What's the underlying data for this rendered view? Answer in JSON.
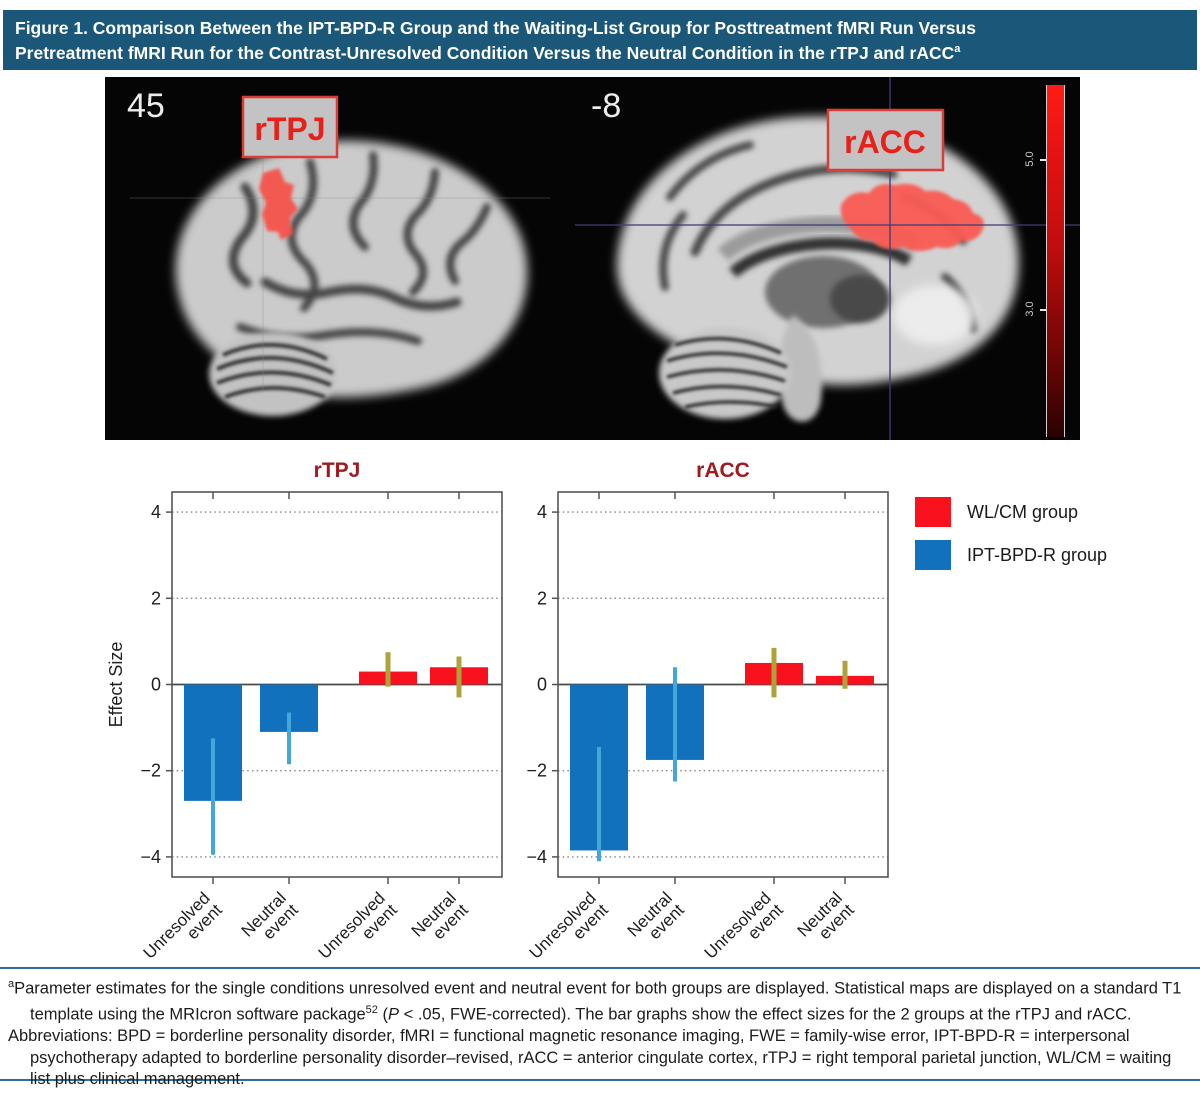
{
  "header": {
    "title_line1": "Figure 1. Comparison Between the IPT-BPD-R Group and the Waiting-List Group for Posttreatment fMRI Run Versus",
    "title_line2": "Pretreatment fMRI Run for the Contrast-Unresolved Condition Versus the Neutral Condition in the rTPJ and rACC",
    "title_superscript": "a"
  },
  "brain_panel": {
    "left_slice": {
      "coordinate_label": "45",
      "region_label": "rTPJ"
    },
    "right_slice": {
      "coordinate_label": "-8",
      "region_label": "rACC"
    },
    "colorbar": {
      "tick_top": "5.0",
      "tick_bottom": "3.0"
    },
    "region_label_color": "#E8201A",
    "label_box_bg": "#C3C3C3",
    "crosshair_color": "#3E3E78"
  },
  "legend": {
    "items": [
      {
        "label": "WL/CM group",
        "color": "#FA111E"
      },
      {
        "label": "IPT-BPD-R group",
        "color": "#1171BD"
      }
    ]
  },
  "chart_data": [
    {
      "type": "bar",
      "title": "rTPJ",
      "title_color": "#9E1C20",
      "ylabel": "Effect Size",
      "ylim": [
        -4.5,
        4.5
      ],
      "yticks": [
        4,
        2,
        0,
        -2,
        -4
      ],
      "grid": "dotted horizontal lines at ±2 and ±4, solid line at 0, legend outside top-right",
      "categories": [
        "Unresolved\nevent",
        "Neutral\nevent",
        "Unresolved\nevent",
        "Neutral\nevent"
      ],
      "groups": [
        "IPT-BPD-R group",
        "IPT-BPD-R group",
        "WL/CM group",
        "WL/CM group"
      ],
      "values": [
        -2.7,
        -1.1,
        0.3,
        0.4
      ],
      "error_low": [
        -3.95,
        -1.85,
        -0.05,
        -0.3
      ],
      "error_high": [
        -1.25,
        -0.65,
        0.75,
        0.65
      ],
      "bar_colors": [
        "#1171BD",
        "#1171BD",
        "#FA111E",
        "#FA111E"
      ],
      "error_bar_colors": [
        "#45A7D9",
        "#45A7D9",
        "#ADA23C",
        "#ADA23C"
      ]
    },
    {
      "type": "bar",
      "title": "rACC",
      "title_color": "#9E1C20",
      "ylabel": "",
      "ylim": [
        -4.5,
        4.5
      ],
      "yticks": [
        4,
        2,
        0,
        -2,
        -4
      ],
      "grid": "dotted horizontal lines at ±2 and ±4, solid line at 0",
      "categories": [
        "Unresolved\nevent",
        "Neutral\nevent",
        "Unresolved\nevent",
        "Neutral\nevent"
      ],
      "groups": [
        "IPT-BPD-R group",
        "IPT-BPD-R group",
        "WL/CM group",
        "WL/CM group"
      ],
      "values": [
        -3.85,
        -1.75,
        0.5,
        0.2
      ],
      "error_low": [
        -4.1,
        -2.25,
        -0.3,
        -0.1
      ],
      "error_high": [
        -1.45,
        0.4,
        0.85,
        0.55
      ],
      "bar_colors": [
        "#1171BD",
        "#1171BD",
        "#FA111E",
        "#FA111E"
      ],
      "error_bar_colors": [
        "#45A7D9",
        "#45A7D9",
        "#ADA23C",
        "#ADA23C"
      ]
    }
  ],
  "footnote": {
    "marker": "a",
    "p1_before_ref": "Parameter estimates for the single conditions unresolved event and neutral event for both groups are displayed. Statistical maps are displayed on a standard T1 template using the MRIcron software package",
    "p1_ref": "52",
    "p1_open": " (",
    "p1_p_symbol": "P",
    "p1_after_p": " < .05, FWE-corrected). The bar graphs show the effect sizes for the 2 groups at the rTPJ and rACC.",
    "p2": "Abbreviations: BPD = borderline personality disorder, fMRI = functional magnetic resonance imaging, FWE = family-wise error, IPT-BPD-R = interpersonal psychotherapy adapted to borderline personality disorder–revised, rACC = anterior cingulate cortex, rTPJ = right temporal parietal junction, WL/CM = waiting list plus clinical management."
  }
}
